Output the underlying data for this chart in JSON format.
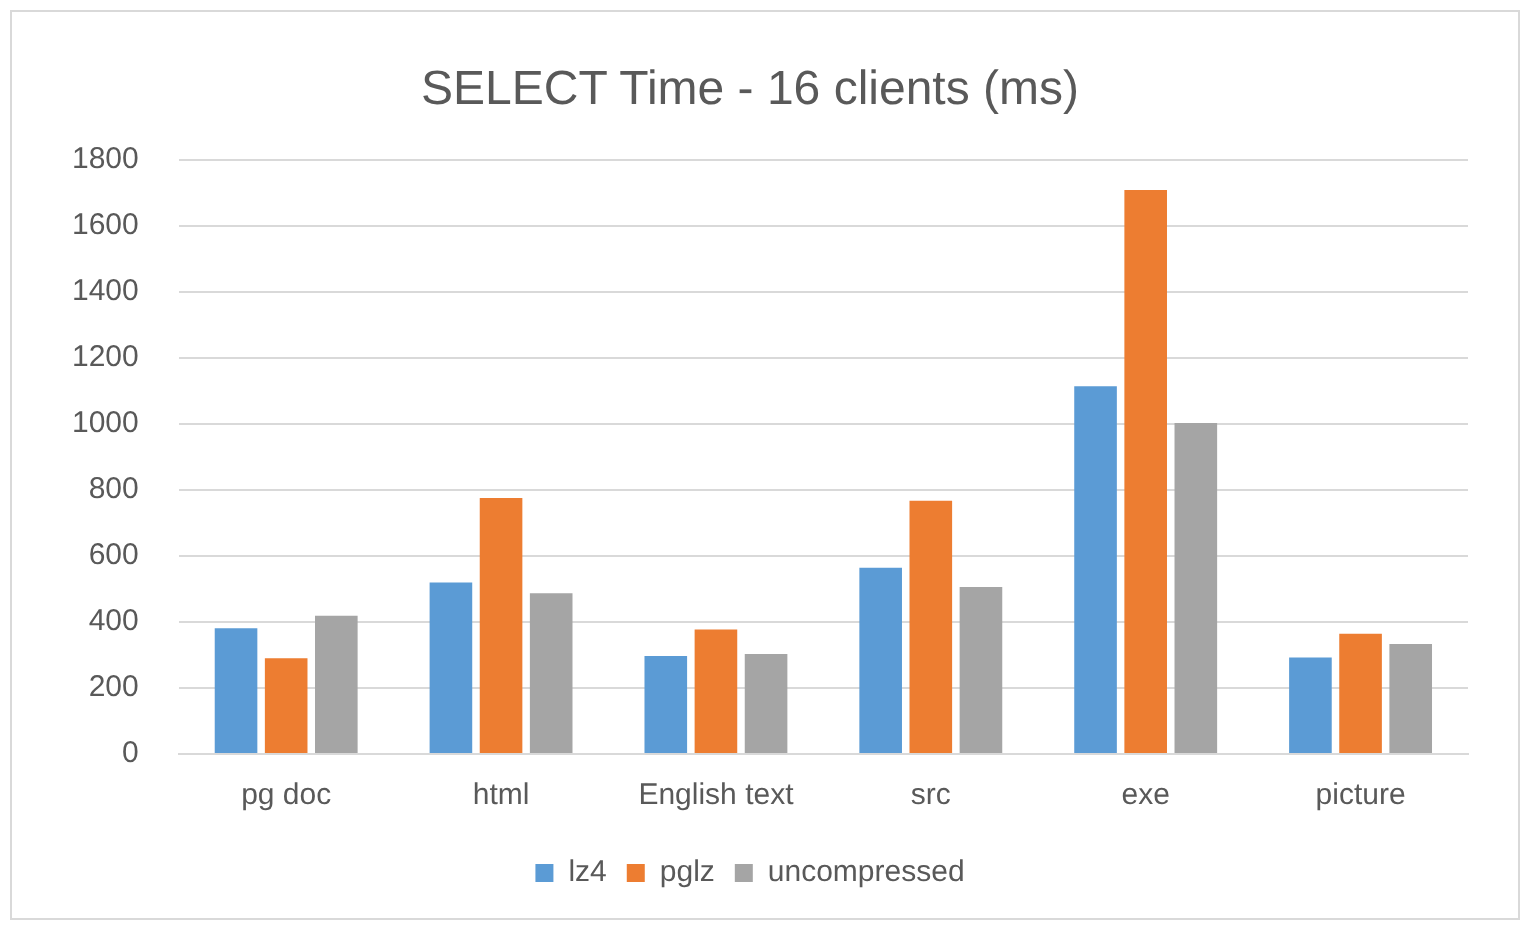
{
  "chart_data": {
    "type": "bar",
    "title": "SELECT Time - 16 clients (ms)",
    "categories": [
      "pg doc",
      "html",
      "English text",
      "src",
      "exe",
      "picture"
    ],
    "series": [
      {
        "name": "lz4",
        "color": "#5b9bd5",
        "values": [
          381,
          519,
          297,
          564,
          1114,
          292
        ]
      },
      {
        "name": "pglz",
        "color": "#ed7d31",
        "values": [
          290,
          775,
          377,
          767,
          1708,
          364
        ]
      },
      {
        "name": "uncompressed",
        "color": "#a5a5a5",
        "values": [
          419,
          487,
          303,
          506,
          1002,
          333
        ]
      }
    ],
    "ylim": [
      0,
      1800
    ],
    "yticks": [
      0,
      200,
      400,
      600,
      800,
      1000,
      1200,
      1400,
      1600,
      1800
    ],
    "grid": "y",
    "legend": "bottom"
  }
}
